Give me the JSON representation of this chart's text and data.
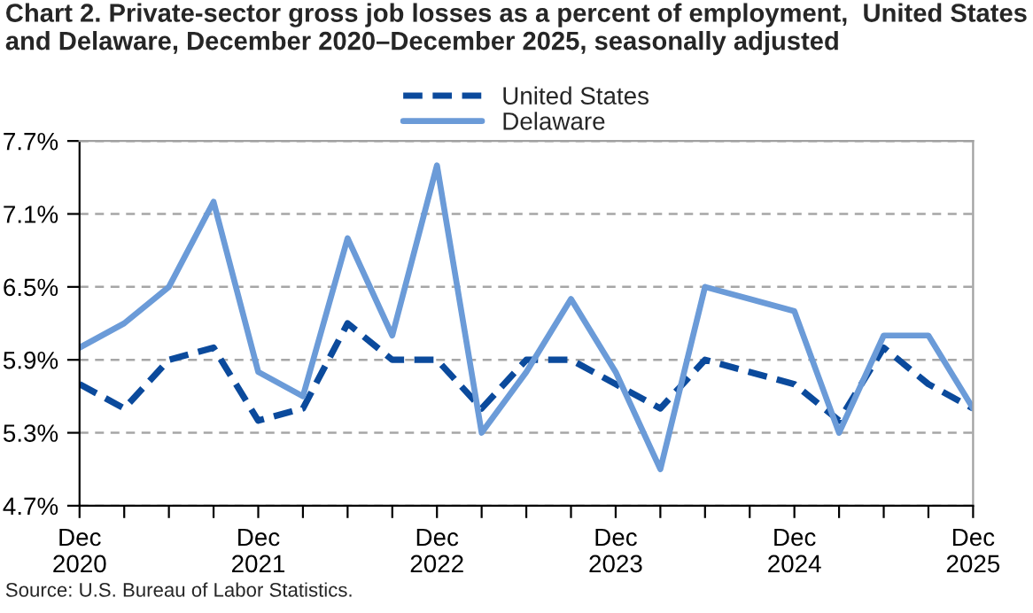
{
  "chart_data": {
    "type": "line",
    "title": "Chart 2. Private-sector gross job losses as a percent of employment,  United States and Delaware, December 2020–December 2025, seasonally adjusted",
    "categories": [
      "Dec\n2020",
      null,
      null,
      null,
      "Dec\n2021",
      null,
      null,
      null,
      "Dec\n2022",
      null,
      null,
      null,
      "Dec\n2023",
      null,
      null,
      null,
      "Dec\n2024",
      null,
      null,
      null,
      "Dec\n2025"
    ],
    "series": [
      {
        "name": "United States",
        "color": "#0b4a9c",
        "line_style": "dashed",
        "values": [
          5.7,
          5.5,
          5.9,
          6.0,
          5.4,
          5.5,
          6.2,
          5.9,
          5.9,
          5.5,
          5.9,
          5.9,
          5.7,
          5.5,
          5.9,
          5.8,
          5.7,
          5.4,
          6.0,
          5.7,
          5.5
        ]
      },
      {
        "name": "Delaware",
        "color": "#6b9bd8",
        "line_style": "solid",
        "values": [
          6.0,
          6.2,
          6.5,
          7.2,
          5.8,
          5.6,
          6.9,
          6.1,
          7.5,
          5.3,
          5.8,
          6.4,
          5.8,
          5.0,
          6.5,
          6.4,
          6.3,
          5.3,
          6.1,
          6.1,
          5.5
        ]
      }
    ],
    "ylim": [
      4.7,
      7.7
    ],
    "yticks": [
      {
        "value": 4.7,
        "label": "4.7%"
      },
      {
        "value": 5.3,
        "label": "5.3%"
      },
      {
        "value": 5.9,
        "label": "5.9%"
      },
      {
        "value": 6.5,
        "label": "6.5%"
      },
      {
        "value": 7.1,
        "label": "7.1%"
      },
      {
        "value": 7.7,
        "label": "7.7%"
      }
    ],
    "grid": "y",
    "legend": "top",
    "marker": "none",
    "annotations": [
      "Source: U.S. Bureau of Labor Statistics."
    ]
  }
}
